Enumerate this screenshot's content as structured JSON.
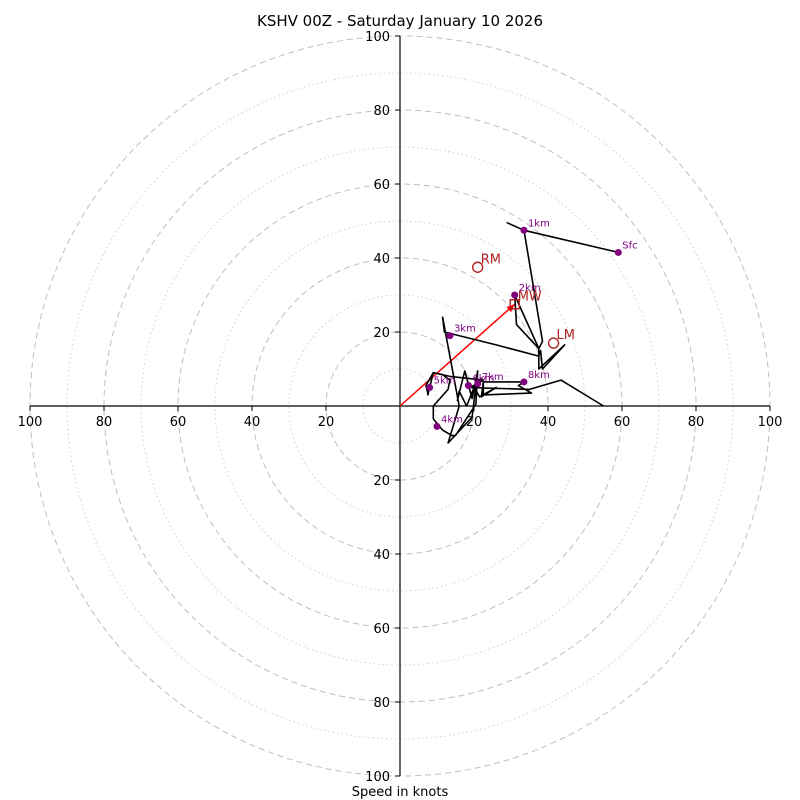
{
  "chart_data": {
    "type": "hodograph",
    "title": "KSHV 00Z - Saturday January 10 2026",
    "xlabel": "Speed in knots",
    "rmax": 100,
    "major_rings": [
      20,
      40,
      60,
      80,
      100
    ],
    "minor_rings": [
      10,
      30,
      50,
      70,
      90
    ],
    "tick_labels": [
      "20",
      "40",
      "60",
      "80",
      "100"
    ],
    "hodograph_trace": [
      [
        59,
        41.5
      ],
      [
        33.5,
        47.5
      ],
      [
        29,
        49.5
      ],
      [
        33.5,
        47.5
      ],
      [
        38.5,
        17.5
      ],
      [
        37.5,
        15.5
      ],
      [
        31,
        30
      ],
      [
        31.5,
        22
      ],
      [
        37.5,
        15.5
      ],
      [
        37.5,
        10
      ],
      [
        44.5,
        16.5
      ],
      [
        38.5,
        10
      ],
      [
        38,
        15
      ],
      [
        37.5,
        13.5
      ],
      [
        26,
        16.5
      ],
      [
        12,
        20
      ],
      [
        11.5,
        24
      ],
      [
        16,
        0
      ],
      [
        13,
        -10
      ],
      [
        19.5,
        -3
      ],
      [
        20.5,
        5.5
      ],
      [
        22,
        7.5
      ],
      [
        22.5,
        6.5
      ],
      [
        22.5,
        3
      ],
      [
        35.5,
        3.5
      ],
      [
        32,
        5.5
      ],
      [
        33.5,
        6.5
      ],
      [
        22.5,
        6.5
      ],
      [
        22,
        2.5
      ],
      [
        26,
        5
      ],
      [
        21.5,
        2.5
      ],
      [
        20,
        5
      ],
      [
        18,
        0
      ],
      [
        16,
        4
      ],
      [
        15.5,
        1.5
      ],
      [
        17.5,
        9.5
      ],
      [
        19.5,
        2
      ],
      [
        21,
        9.5
      ],
      [
        20.5,
        0.5
      ],
      [
        15,
        -8
      ],
      [
        14,
        -8
      ],
      [
        11.5,
        -6.5
      ],
      [
        9,
        -3.5
      ],
      [
        9,
        0
      ],
      [
        13,
        4.5
      ],
      [
        13.5,
        7
      ],
      [
        11.5,
        8.5
      ],
      [
        9,
        9
      ],
      [
        7,
        5.5
      ],
      [
        7.5,
        3.5
      ],
      [
        7.5,
        3
      ],
      [
        9,
        9
      ],
      [
        13.5,
        8
      ],
      [
        22.5,
        7
      ],
      [
        19,
        5
      ],
      [
        35,
        4.5
      ],
      [
        43.5,
        7
      ],
      [
        55,
        0
      ]
    ],
    "height_points": [
      {
        "label": "Sfc",
        "u": 59,
        "v": 41.5
      },
      {
        "label": "1km",
        "u": 33.5,
        "v": 47.5
      },
      {
        "label": "2km",
        "u": 31,
        "v": 30
      },
      {
        "label": "3km",
        "u": 13.5,
        "v": 19
      },
      {
        "label": "4km",
        "u": 10,
        "v": -5.5
      },
      {
        "label": "5km",
        "u": 8,
        "v": 5
      },
      {
        "label": "6km",
        "u": 18.5,
        "v": 5.5
      },
      {
        "label": "7km",
        "u": 21,
        "v": 6
      },
      {
        "label": "8km",
        "u": 33.5,
        "v": 6.5
      }
    ],
    "storm_motion": [
      {
        "label": "RM",
        "u": 21,
        "v": 37.5
      },
      {
        "label": "LM",
        "u": 41.5,
        "v": 17
      },
      {
        "label": "MW",
        "u": 31,
        "v": 27.5
      }
    ],
    "shear_vector": {
      "from": [
        0,
        0
      ],
      "to": [
        31,
        27.5
      ]
    }
  }
}
